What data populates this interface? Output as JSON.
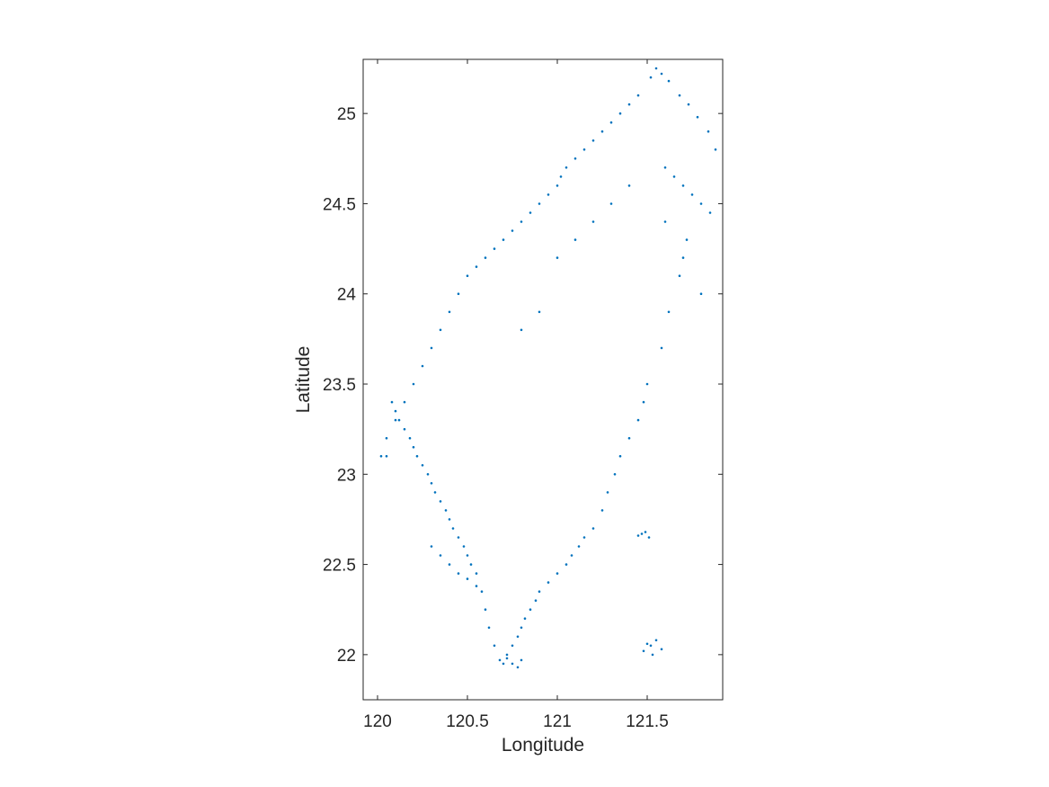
{
  "chart_data": {
    "type": "scatter",
    "title": "",
    "xlabel": "Longitude",
    "ylabel": "Latitude",
    "xlim": [
      119.92,
      121.92
    ],
    "ylim": [
      21.75,
      25.3
    ],
    "xticks": [
      120,
      120.5,
      121,
      121.5
    ],
    "xtick_labels": [
      "120",
      "120.5",
      "121",
      "121.5"
    ],
    "yticks": [
      22,
      22.5,
      23,
      23.5,
      24,
      24.5,
      25
    ],
    "ytick_labels": [
      "22",
      "22.5",
      "23",
      "23.5",
      "24",
      "24.5",
      "25"
    ],
    "grid": false,
    "box": true,
    "marker_color": "#0072BD",
    "series": [
      {
        "points_description_free_sample": true,
        "x": [
          121.52,
          121.55,
          121.58,
          121.62,
          121.68,
          121.73,
          121.78,
          121.84,
          121.88,
          121.45,
          121.4,
          121.35,
          121.3,
          121.25,
          121.2,
          121.15,
          121.1,
          121.05,
          121.02,
          121.0,
          120.95,
          120.9,
          120.85,
          120.8,
          120.75,
          120.7,
          120.65,
          120.6,
          120.55,
          120.5,
          120.45,
          120.4,
          120.35,
          120.3,
          120.25,
          120.2,
          120.15,
          120.1,
          120.05,
          120.02,
          121.6,
          121.65,
          121.7,
          121.75,
          121.8,
          121.85,
          121.72,
          121.68,
          121.62,
          121.58,
          121.5,
          121.48,
          121.45,
          121.4,
          121.35,
          121.32,
          121.28,
          121.25,
          121.2,
          121.15,
          121.12,
          121.08,
          121.05,
          121.0,
          120.95,
          120.9,
          120.88,
          120.85,
          120.82,
          120.8,
          120.78,
          120.75,
          120.72,
          120.7,
          120.68,
          120.65,
          120.62,
          120.6,
          120.58,
          120.55,
          120.52,
          120.5,
          120.48,
          120.45,
          120.42,
          120.4,
          120.38,
          120.35,
          120.32,
          120.3,
          120.28,
          120.25,
          120.22,
          120.2,
          120.18,
          120.15,
          120.12,
          120.1,
          120.08,
          120.05,
          121.52,
          121.55,
          121.58,
          121.48,
          121.5,
          121.53,
          120.72,
          120.75,
          120.78,
          120.8,
          121.45,
          121.47,
          121.49,
          121.51,
          120.3,
          120.35,
          120.4,
          120.45,
          120.5,
          120.55,
          121.0,
          121.1,
          121.2,
          121.3,
          121.4,
          121.6,
          121.7,
          121.8,
          120.9,
          120.8
        ],
        "y": [
          25.2,
          25.25,
          25.22,
          25.18,
          25.1,
          25.05,
          24.98,
          24.9,
          24.8,
          25.1,
          25.05,
          25.0,
          24.95,
          24.9,
          24.85,
          24.8,
          24.75,
          24.7,
          24.65,
          24.6,
          24.55,
          24.5,
          24.45,
          24.4,
          24.35,
          24.3,
          24.25,
          24.2,
          24.15,
          24.1,
          24.0,
          23.9,
          23.8,
          23.7,
          23.6,
          23.5,
          23.4,
          23.3,
          23.2,
          23.1,
          24.7,
          24.65,
          24.6,
          24.55,
          24.5,
          24.45,
          24.3,
          24.1,
          23.9,
          23.7,
          23.5,
          23.4,
          23.3,
          23.2,
          23.1,
          23.0,
          22.9,
          22.8,
          22.7,
          22.65,
          22.6,
          22.55,
          22.5,
          22.45,
          22.4,
          22.35,
          22.3,
          22.25,
          22.2,
          22.15,
          22.1,
          22.05,
          22.0,
          21.95,
          21.97,
          22.05,
          22.15,
          22.25,
          22.35,
          22.45,
          22.5,
          22.55,
          22.6,
          22.65,
          22.7,
          22.75,
          22.8,
          22.85,
          22.9,
          22.95,
          23.0,
          23.05,
          23.1,
          23.15,
          23.2,
          23.25,
          23.3,
          23.35,
          23.4,
          23.1,
          22.05,
          22.08,
          22.03,
          22.02,
          22.06,
          22.0,
          21.98,
          21.95,
          21.93,
          21.97,
          22.66,
          22.67,
          22.68,
          22.65,
          22.6,
          22.55,
          22.5,
          22.45,
          22.42,
          22.38,
          24.2,
          24.3,
          24.4,
          24.5,
          24.6,
          24.4,
          24.2,
          24.0,
          23.9,
          23.8
        ]
      }
    ]
  }
}
